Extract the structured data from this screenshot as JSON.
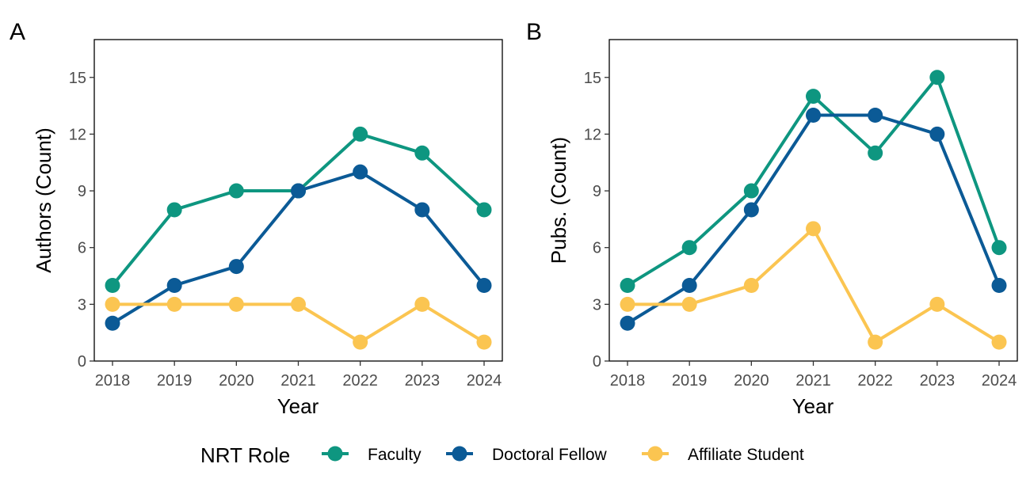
{
  "colors": {
    "Faculty": "#0e9680",
    "Doctoral Fellow": "#0b5a96",
    "Affiliate Student": "#fbc551"
  },
  "legend": {
    "title": "NRT Role",
    "entries": [
      "Faculty",
      "Doctoral Fellow",
      "Affiliate Student"
    ]
  },
  "chart_data": [
    {
      "type": "line",
      "panel": "A",
      "xlabel": "Year",
      "ylabel": "Authors (Count)",
      "categories": [
        "2018",
        "2019",
        "2020",
        "2021",
        "2022",
        "2023",
        "2024"
      ],
      "yticks": [
        0,
        3,
        6,
        9,
        12,
        15
      ],
      "ylim": [
        0,
        17
      ],
      "series": [
        {
          "name": "Faculty",
          "values": [
            4,
            8,
            9,
            9,
            12,
            11,
            8
          ]
        },
        {
          "name": "Doctoral Fellow",
          "values": [
            2,
            4,
            5,
            9,
            10,
            8,
            4
          ]
        },
        {
          "name": "Affiliate Student",
          "values": [
            3,
            3,
            3,
            3,
            1,
            3,
            1
          ]
        }
      ]
    },
    {
      "type": "line",
      "panel": "B",
      "xlabel": "Year",
      "ylabel": "Pubs. (Count)",
      "categories": [
        "2018",
        "2019",
        "2020",
        "2021",
        "2022",
        "2023",
        "2024"
      ],
      "yticks": [
        0,
        3,
        6,
        9,
        12,
        15
      ],
      "ylim": [
        0,
        17
      ],
      "series": [
        {
          "name": "Faculty",
          "values": [
            4,
            6,
            9,
            14,
            11,
            15,
            6
          ]
        },
        {
          "name": "Doctoral Fellow",
          "values": [
            2,
            4,
            8,
            13,
            13,
            12,
            4
          ]
        },
        {
          "name": "Affiliate Student",
          "values": [
            3,
            3,
            4,
            7,
            1,
            3,
            1
          ]
        }
      ]
    }
  ]
}
